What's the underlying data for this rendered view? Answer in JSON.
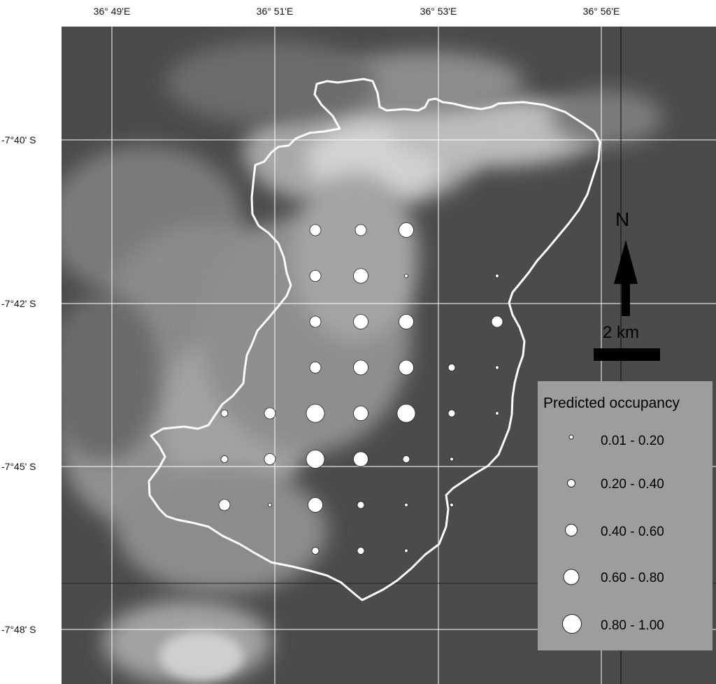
{
  "longitude_labels": [
    "36° 49'E",
    "36° 51'E",
    "36° 53'E",
    "36° 56'E"
  ],
  "latitude_labels": [
    "-7°40' S",
    "-7°42' S",
    "-7°45' S",
    "-7°48' S"
  ],
  "north_arrow": {
    "label": "N"
  },
  "scale_bar": {
    "label": "2 km"
  },
  "legend": {
    "title": "Predicted occupancy",
    "classes": [
      {
        "label": "0.01 - 0.20",
        "class_index": 1
      },
      {
        "label": "0.20 - 0.40",
        "class_index": 2
      },
      {
        "label": "0.40 - 0.60",
        "class_index": 3
      },
      {
        "label": "0.60 - 0.80",
        "class_index": 4
      },
      {
        "label": "0.80 - 1.00",
        "class_index": 5
      }
    ]
  },
  "colors": {
    "background_lowland": "#4b4b4b",
    "highland": "#d8d8d8",
    "grid": "#ffffff",
    "boundary": "#ffffff",
    "point_fill": "#ffffff",
    "legend_bg": "#9d9d9d"
  },
  "occupancy_points": [
    {
      "row": 1,
      "col": 3,
      "class": 3
    },
    {
      "row": 1,
      "col": 4,
      "class": 3
    },
    {
      "row": 1,
      "col": 5,
      "class": 4
    },
    {
      "row": 2,
      "col": 3,
      "class": 3
    },
    {
      "row": 2,
      "col": 4,
      "class": 4
    },
    {
      "row": 2,
      "col": 5,
      "class": 1
    },
    {
      "row": 2,
      "col": 7,
      "class": 1
    },
    {
      "row": 3,
      "col": 3,
      "class": 3
    },
    {
      "row": 3,
      "col": 4,
      "class": 4
    },
    {
      "row": 3,
      "col": 5,
      "class": 4
    },
    {
      "row": 3,
      "col": 7,
      "class": 3
    },
    {
      "row": 4,
      "col": 3,
      "class": 3
    },
    {
      "row": 4,
      "col": 4,
      "class": 4
    },
    {
      "row": 4,
      "col": 5,
      "class": 4
    },
    {
      "row": 4,
      "col": 6,
      "class": 2
    },
    {
      "row": 4,
      "col": 7,
      "class": 1
    },
    {
      "row": 5,
      "col": 1,
      "class": 2
    },
    {
      "row": 5,
      "col": 2,
      "class": 3
    },
    {
      "row": 5,
      "col": 3,
      "class": 5
    },
    {
      "row": 5,
      "col": 4,
      "class": 4
    },
    {
      "row": 5,
      "col": 5,
      "class": 5
    },
    {
      "row": 5,
      "col": 6,
      "class": 2
    },
    {
      "row": 5,
      "col": 7,
      "class": 1
    },
    {
      "row": 6,
      "col": 1,
      "class": 2
    },
    {
      "row": 6,
      "col": 2,
      "class": 3
    },
    {
      "row": 6,
      "col": 3,
      "class": 5
    },
    {
      "row": 6,
      "col": 4,
      "class": 4
    },
    {
      "row": 6,
      "col": 5,
      "class": 2
    },
    {
      "row": 6,
      "col": 6,
      "class": 1
    },
    {
      "row": 7,
      "col": 1,
      "class": 3
    },
    {
      "row": 7,
      "col": 2,
      "class": 1
    },
    {
      "row": 7,
      "col": 3,
      "class": 4
    },
    {
      "row": 7,
      "col": 4,
      "class": 2
    },
    {
      "row": 7,
      "col": 5,
      "class": 1
    },
    {
      "row": 7,
      "col": 6,
      "class": 1
    },
    {
      "row": 8,
      "col": 3,
      "class": 2
    },
    {
      "row": 8,
      "col": 4,
      "class": 2
    },
    {
      "row": 8,
      "col": 5,
      "class": 1
    }
  ]
}
